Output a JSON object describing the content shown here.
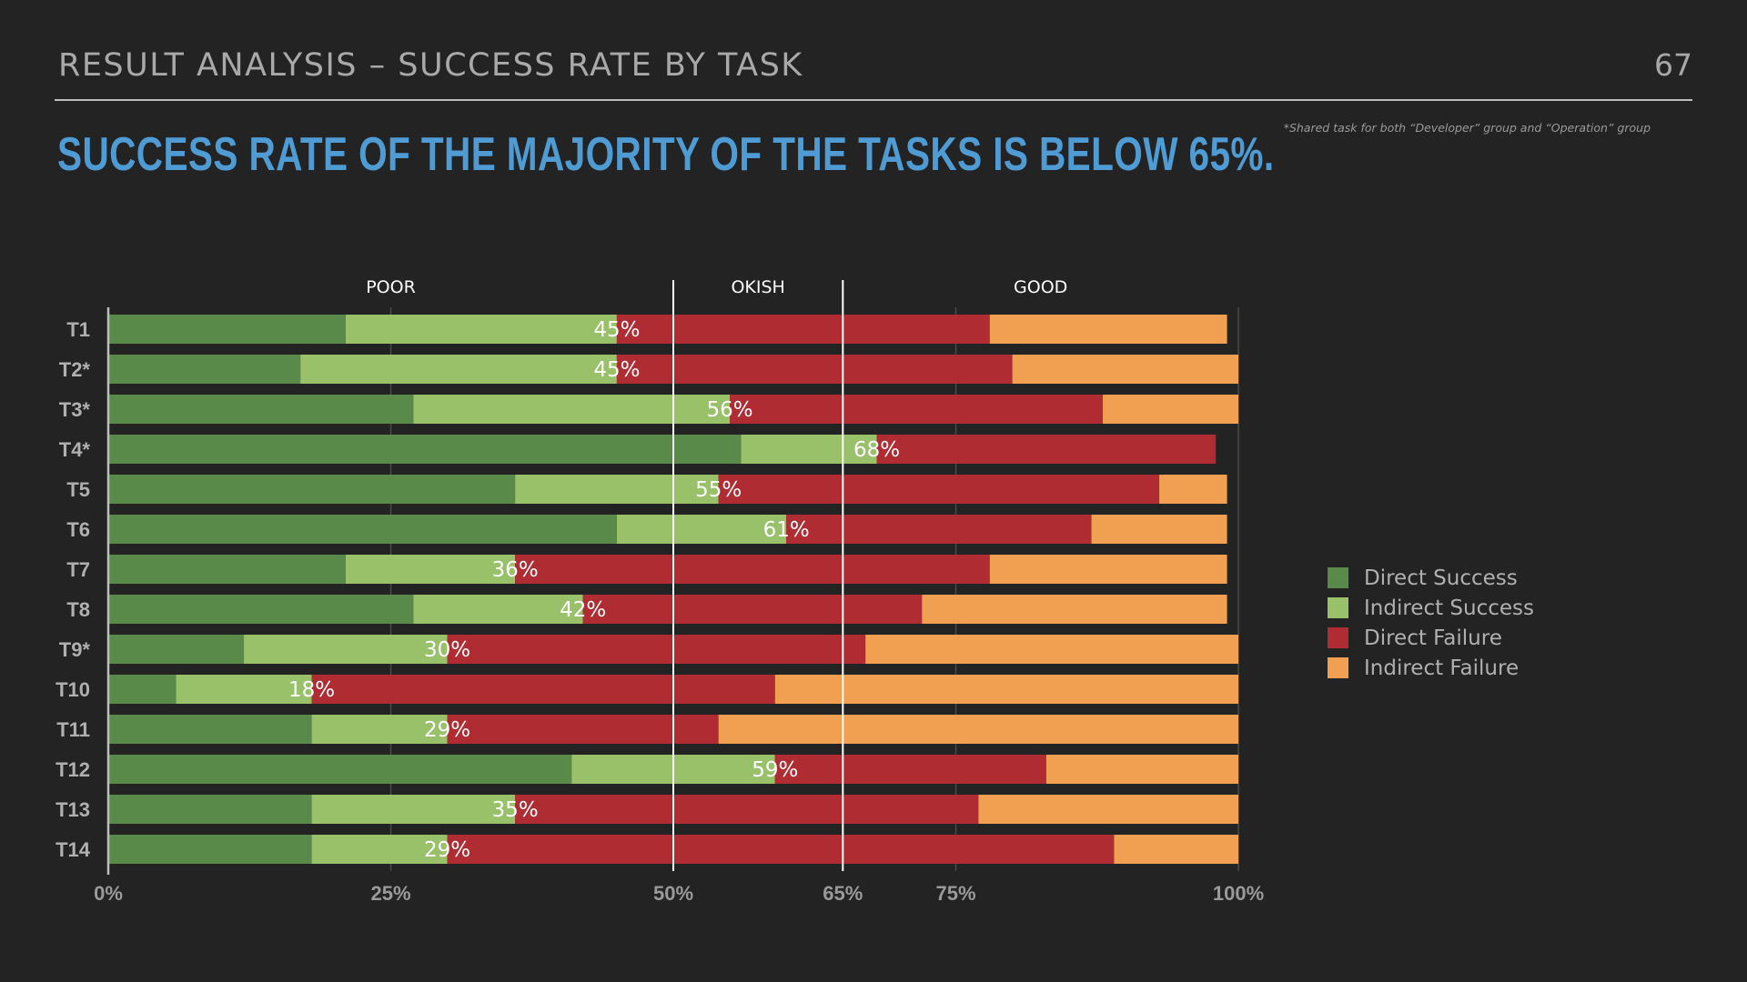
{
  "header": {
    "section_title": "RESULT ANALYSIS – SUCCESS RATE BY TASK",
    "page_number": "67",
    "headline": "SUCCESS RATE OF THE MAJORITY OF THE TASKS IS BELOW 65%.",
    "footnote": "*Shared task for both “Developer” group and “Operation” group"
  },
  "colors": {
    "background": "#232323",
    "direct_success": "#5a8a4a",
    "indirect_success": "#98c16a",
    "direct_failure": "#b02c33",
    "indirect_failure": "#f0a050",
    "headline": "#4f9bd4"
  },
  "chart_data": {
    "type": "bar",
    "orientation": "horizontal",
    "stacked": true,
    "categories": [
      "T1",
      "T2*",
      "T3*",
      "T4*",
      "T5",
      "T6",
      "T7",
      "T8",
      "T9*",
      "T10",
      "T11",
      "T12",
      "T13",
      "T14"
    ],
    "series": [
      {
        "name": "Direct Success",
        "color": "#5a8a4a",
        "values": [
          21,
          17,
          27,
          56,
          36,
          45,
          21,
          27,
          12,
          6,
          18,
          41,
          18,
          18
        ]
      },
      {
        "name": "Indirect Success",
        "color": "#98c16a",
        "values": [
          24,
          28,
          28,
          12,
          18,
          15,
          15,
          15,
          18,
          12,
          12,
          18,
          18,
          12
        ]
      },
      {
        "name": "Direct Failure",
        "color": "#b02c33",
        "values": [
          33,
          35,
          33,
          30,
          39,
          27,
          42,
          30,
          37,
          41,
          24,
          24,
          41,
          59
        ]
      },
      {
        "name": "Indirect Failure",
        "color": "#f0a050",
        "values": [
          21,
          20,
          12,
          0,
          6,
          12,
          21,
          27,
          33,
          41,
          46,
          17,
          23,
          11
        ]
      }
    ],
    "success_labels": [
      "45%",
      "45%",
      "56%",
      "68%",
      "55%",
      "61%",
      "36%",
      "42%",
      "30%",
      "18%",
      "29%",
      "59%",
      "35%",
      "29%"
    ],
    "x_ticks": [
      {
        "value": 0,
        "label": "0%"
      },
      {
        "value": 25,
        "label": "25%"
      },
      {
        "value": 50,
        "label": "50%"
      },
      {
        "value": 65,
        "label": "65%"
      },
      {
        "value": 75,
        "label": "75%"
      },
      {
        "value": 100,
        "label": "100%"
      }
    ],
    "xlim": [
      0,
      100
    ],
    "thresholds": [
      50,
      65
    ],
    "zones": [
      {
        "label": "POOR",
        "range": [
          0,
          50
        ]
      },
      {
        "label": "OKISH",
        "range": [
          50,
          65
        ]
      },
      {
        "label": "GOOD",
        "range": [
          65,
          100
        ]
      }
    ],
    "legend_position": "right",
    "grid": true
  }
}
